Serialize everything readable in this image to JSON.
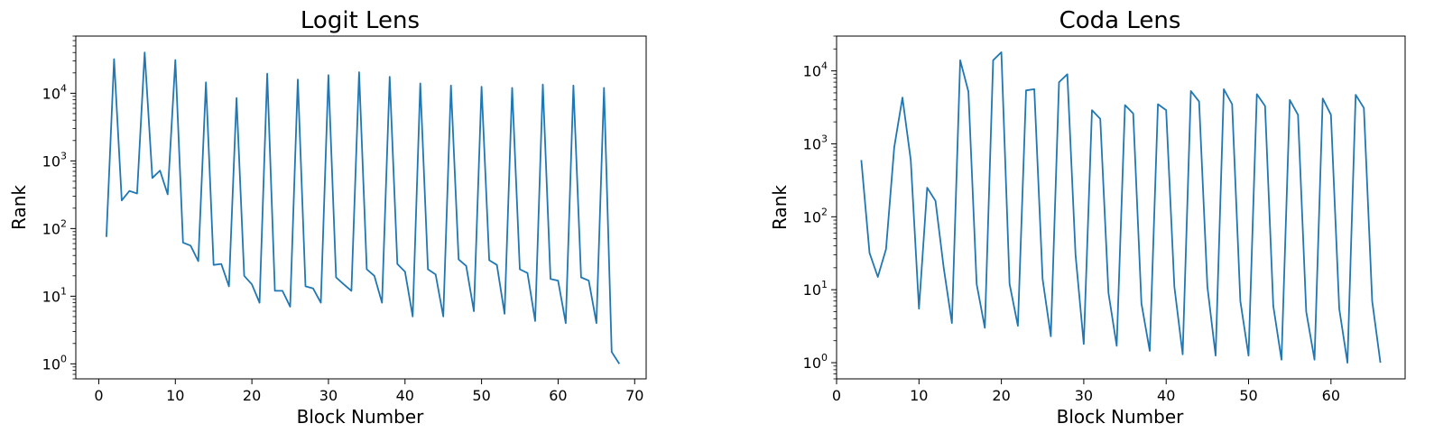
{
  "chart_data": [
    {
      "type": "line",
      "title": "Logit Lens",
      "xlabel": "Block Number",
      "ylabel": "Rank",
      "yscale": "log",
      "xlim": [
        -3,
        71.5
      ],
      "ylim": [
        0.6,
        70000
      ],
      "xticks": [
        0,
        10,
        20,
        30,
        40,
        50,
        60,
        70
      ],
      "yticks": [
        1,
        10,
        100,
        1000,
        10000
      ],
      "ytick_labels": [
        {
          "base": "10",
          "exp": "0"
        },
        {
          "base": "10",
          "exp": "1"
        },
        {
          "base": "10",
          "exp": "2"
        },
        {
          "base": "10",
          "exp": "3"
        },
        {
          "base": "10",
          "exp": "4"
        }
      ],
      "grid": false,
      "color": "#1f77b4",
      "x": [
        1,
        2,
        3,
        4,
        5,
        6,
        7,
        8,
        9,
        10,
        11,
        12,
        13,
        14,
        15,
        16,
        17,
        18,
        19,
        20,
        21,
        22,
        23,
        24,
        25,
        26,
        27,
        28,
        29,
        30,
        31,
        32,
        33,
        34,
        35,
        36,
        37,
        38,
        39,
        40,
        41,
        42,
        43,
        44,
        45,
        46,
        47,
        48,
        49,
        50,
        51,
        52,
        53,
        54,
        55,
        56,
        57,
        58,
        59,
        60,
        61,
        62,
        63,
        64,
        65,
        66,
        67,
        68
      ],
      "y": [
        75,
        32000,
        260,
        360,
        330,
        40000,
        560,
        720,
        320,
        31000,
        62,
        56,
        33,
        14500,
        29,
        30,
        14,
        8500,
        20,
        15,
        8,
        19500,
        12,
        12,
        7,
        16000,
        14,
        13,
        8,
        18500,
        19,
        15,
        12,
        20500,
        25,
        20,
        8,
        17500,
        30,
        23,
        5,
        14000,
        25,
        21,
        5,
        13000,
        35,
        28,
        6,
        12500,
        34,
        29,
        5.5,
        12000,
        25,
        22,
        4.3,
        13500,
        18,
        17,
        4,
        13000,
        19,
        17,
        4,
        12000,
        1.5,
        1
      ]
    },
    {
      "type": "line",
      "title": "Coda Lens",
      "xlabel": "Block Number",
      "ylabel": "Rank",
      "yscale": "log",
      "xlim": [
        0,
        69
      ],
      "ylim": [
        0.6,
        30000
      ],
      "xticks": [
        0,
        10,
        20,
        30,
        40,
        50,
        60
      ],
      "yticks": [
        1,
        10,
        100,
        1000,
        10000
      ],
      "ytick_labels": [
        {
          "base": "10",
          "exp": "0"
        },
        {
          "base": "10",
          "exp": "1"
        },
        {
          "base": "10",
          "exp": "2"
        },
        {
          "base": "10",
          "exp": "3"
        },
        {
          "base": "10",
          "exp": "4"
        }
      ],
      "grid": false,
      "color": "#1f77b4",
      "x": [
        3,
        4,
        5,
        6,
        7,
        8,
        9,
        10,
        11,
        12,
        13,
        14,
        15,
        16,
        17,
        18,
        19,
        20,
        21,
        22,
        23,
        24,
        25,
        26,
        27,
        28,
        29,
        30,
        31,
        32,
        33,
        34,
        35,
        36,
        37,
        38,
        39,
        40,
        41,
        42,
        43,
        44,
        45,
        46,
        47,
        48,
        49,
        50,
        51,
        52,
        53,
        54,
        55,
        56,
        57,
        58,
        59,
        60,
        61,
        62,
        63,
        64,
        65,
        66
      ],
      "y": [
        600,
        32,
        15,
        36,
        900,
        4300,
        600,
        5.5,
        250,
        165,
        20,
        3.5,
        14000,
        5200,
        12,
        3,
        14000,
        18000,
        12,
        3.2,
        5400,
        5600,
        14,
        2.3,
        7000,
        9000,
        30,
        1.8,
        2900,
        2200,
        9,
        1.7,
        3400,
        2600,
        6.5,
        1.45,
        3500,
        2900,
        11,
        1.3,
        5300,
        3800,
        11,
        1.25,
        5600,
        3500,
        7,
        1.25,
        4800,
        3300,
        6,
        1.1,
        4000,
        2500,
        5,
        1.1,
        4200,
        2500,
        5.5,
        1,
        4700,
        3100,
        7,
        1
      ]
    }
  ]
}
